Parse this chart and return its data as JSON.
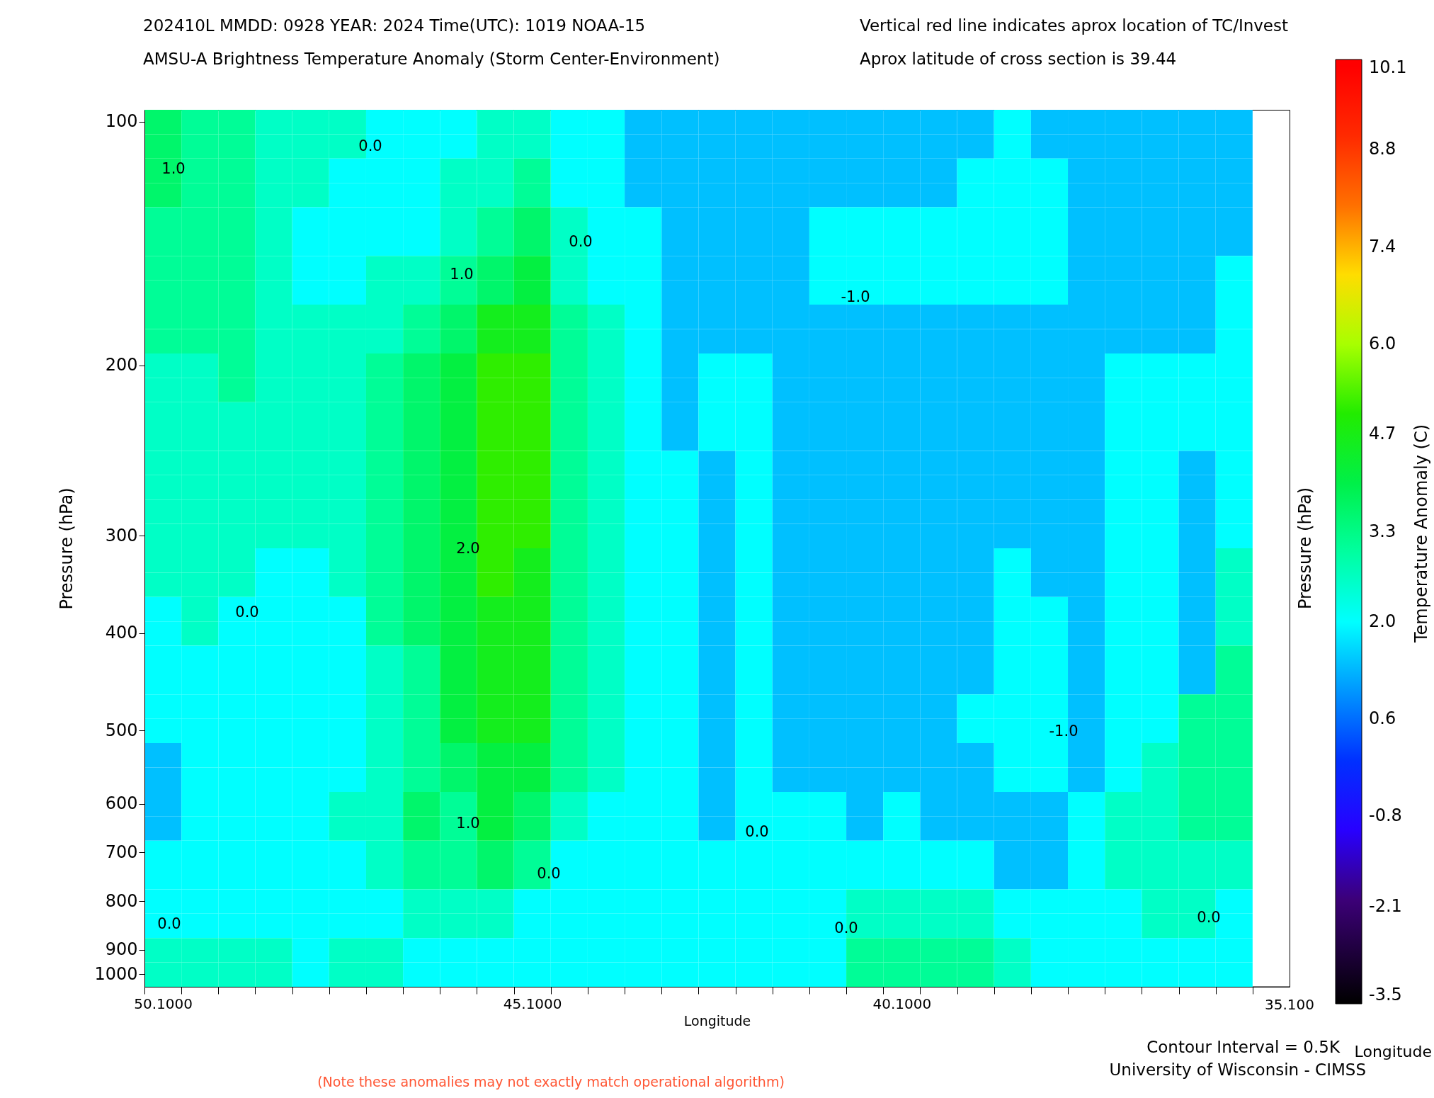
{
  "chart_data": {
    "type": "heatmap",
    "title": "202410L  MMDD: 0928 YEAR: 2024 Time(UTC): 1019 NOAA-15",
    "subtitle": "AMSU-A Brightness Temperature Anomaly (Storm Center-Environment)",
    "xlabel": "Longitude",
    "ylabel": "Pressure (hPa)",
    "y2label": "Pressure (hPa)",
    "clabel": "Temperature Anomaly (C)",
    "annotations": [
      "Vertical red line indicates aprox location of TC/Invest",
      "Aprox latitude of cross section is 39.44",
      "Contour Interval = 0.5K",
      "Longitude",
      "University of Wisconsin - CIMSS",
      "(Note these anomalies may not exactly match operational algorithm)",
      "1.0",
      "0.0",
      "0.0",
      "1.0",
      "2.0",
      "0.0",
      "1.0",
      "0.0",
      "0.0",
      "-1.0",
      "0.0",
      "0.0",
      "-1.0",
      "0.0",
      "35.100"
    ],
    "categories": [
      "50.1000",
      null,
      null,
      null,
      null,
      null,
      null,
      null,
      null,
      null,
      "45.1000",
      null,
      null,
      null,
      null,
      null,
      null,
      null,
      null,
      null,
      "40.1000",
      null,
      null,
      null,
      null,
      null,
      null,
      null,
      null,
      null
    ],
    "y_categories": [
      "100",
      null,
      null,
      null,
      null,
      null,
      null,
      null,
      null,
      null,
      "200",
      null,
      null,
      null,
      null,
      null,
      null,
      "300",
      null,
      null,
      null,
      "400",
      null,
      null,
      null,
      "500",
      null,
      null,
      "600",
      null,
      "700",
      null,
      "800",
      null,
      "900",
      "1000"
    ],
    "cells": [
      [
        3.6,
        3.1,
        3.1,
        2.6,
        2.6,
        2.6,
        2.0,
        2.0,
        2.0,
        2.6,
        2.6,
        2.0,
        2.0,
        1.4,
        1.4,
        1.4,
        1.4,
        1.4,
        1.4,
        1.4,
        1.4,
        1.4,
        1.4,
        2.0,
        1.4,
        1.4,
        1.4,
        1.4,
        1.4,
        1.4
      ],
      [
        3.6,
        3.1,
        3.1,
        2.6,
        2.6,
        2.6,
        2.0,
        2.0,
        2.0,
        2.6,
        2.6,
        2.0,
        2.0,
        1.4,
        1.4,
        1.4,
        1.4,
        1.4,
        1.4,
        1.4,
        1.4,
        1.4,
        1.4,
        2.0,
        1.4,
        1.4,
        1.4,
        1.4,
        1.4,
        1.4
      ],
      [
        3.6,
        3.1,
        3.1,
        2.6,
        2.6,
        2.0,
        2.0,
        2.0,
        2.6,
        2.6,
        3.1,
        2.0,
        2.0,
        1.4,
        1.4,
        1.4,
        1.4,
        1.4,
        1.4,
        1.4,
        1.4,
        1.4,
        2.0,
        2.0,
        2.0,
        1.4,
        1.4,
        1.4,
        1.4,
        1.4
      ],
      [
        3.6,
        3.1,
        3.1,
        2.6,
        2.6,
        2.0,
        2.0,
        2.0,
        2.6,
        2.6,
        3.1,
        2.0,
        2.0,
        1.4,
        1.4,
        1.4,
        1.4,
        1.4,
        1.4,
        1.4,
        1.4,
        1.4,
        2.0,
        2.0,
        2.0,
        1.4,
        1.4,
        1.4,
        1.4,
        1.4
      ],
      [
        3.1,
        3.1,
        3.1,
        2.6,
        2.0,
        2.0,
        2.0,
        2.0,
        2.6,
        3.1,
        3.6,
        2.6,
        2.0,
        2.0,
        1.4,
        1.4,
        1.4,
        1.4,
        2.0,
        2.0,
        2.0,
        2.0,
        2.0,
        2.0,
        2.0,
        1.4,
        1.4,
        1.4,
        1.4,
        1.4
      ],
      [
        3.1,
        3.1,
        3.1,
        2.6,
        2.0,
        2.0,
        2.0,
        2.0,
        2.6,
        3.1,
        3.6,
        2.6,
        2.0,
        2.0,
        1.4,
        1.4,
        1.4,
        1.4,
        2.0,
        2.0,
        2.0,
        2.0,
        2.0,
        2.0,
        2.0,
        1.4,
        1.4,
        1.4,
        1.4,
        1.4
      ],
      [
        3.1,
        3.1,
        3.1,
        2.6,
        2.0,
        2.0,
        2.6,
        2.6,
        3.1,
        3.6,
        4.1,
        2.6,
        2.0,
        2.0,
        1.4,
        1.4,
        1.4,
        1.4,
        2.0,
        2.0,
        2.0,
        2.0,
        2.0,
        2.0,
        2.0,
        1.4,
        1.4,
        1.4,
        1.4,
        2.0
      ],
      [
        3.1,
        3.1,
        3.1,
        2.6,
        2.0,
        2.0,
        2.6,
        2.6,
        3.1,
        3.6,
        4.1,
        2.6,
        2.0,
        2.0,
        1.4,
        1.4,
        1.4,
        1.4,
        2.0,
        2.0,
        2.0,
        2.0,
        2.0,
        2.0,
        2.0,
        1.4,
        1.4,
        1.4,
        1.4,
        2.0
      ],
      [
        3.1,
        3.1,
        3.1,
        2.6,
        2.6,
        2.6,
        2.6,
        3.1,
        3.6,
        4.6,
        4.6,
        3.1,
        2.6,
        2.0,
        1.4,
        1.4,
        1.4,
        1.4,
        1.4,
        1.4,
        1.4,
        1.4,
        1.4,
        1.4,
        1.4,
        1.4,
        1.4,
        1.4,
        1.4,
        2.0
      ],
      [
        3.1,
        3.1,
        3.1,
        2.6,
        2.6,
        2.6,
        2.6,
        3.1,
        3.6,
        4.6,
        4.6,
        3.1,
        2.6,
        2.0,
        1.4,
        1.4,
        1.4,
        1.4,
        1.4,
        1.4,
        1.4,
        1.4,
        1.4,
        1.4,
        1.4,
        1.4,
        1.4,
        1.4,
        1.4,
        2.0
      ],
      [
        2.6,
        2.6,
        3.1,
        2.6,
        2.6,
        2.6,
        3.1,
        3.6,
        4.1,
        5.1,
        5.1,
        3.1,
        2.6,
        2.0,
        1.4,
        2.0,
        2.0,
        1.4,
        1.4,
        1.4,
        1.4,
        1.4,
        1.4,
        1.4,
        1.4,
        1.4,
        2.0,
        2.0,
        2.0,
        2.0
      ],
      [
        2.6,
        2.6,
        3.1,
        2.6,
        2.6,
        2.6,
        3.1,
        3.6,
        4.1,
        5.1,
        5.1,
        3.1,
        2.6,
        2.0,
        1.4,
        2.0,
        2.0,
        1.4,
        1.4,
        1.4,
        1.4,
        1.4,
        1.4,
        1.4,
        1.4,
        1.4,
        2.0,
        2.0,
        2.0,
        2.0
      ],
      [
        2.6,
        2.6,
        2.6,
        2.6,
        2.6,
        2.6,
        3.1,
        3.6,
        4.1,
        5.1,
        5.1,
        3.1,
        2.6,
        2.0,
        1.4,
        2.0,
        2.0,
        1.4,
        1.4,
        1.4,
        1.4,
        1.4,
        1.4,
        1.4,
        1.4,
        1.4,
        2.0,
        2.0,
        2.0,
        2.0
      ],
      [
        2.6,
        2.6,
        2.6,
        2.6,
        2.6,
        2.6,
        3.1,
        3.6,
        4.1,
        5.1,
        5.1,
        3.1,
        2.6,
        2.0,
        1.4,
        2.0,
        2.0,
        1.4,
        1.4,
        1.4,
        1.4,
        1.4,
        1.4,
        1.4,
        1.4,
        1.4,
        2.0,
        2.0,
        2.0,
        2.0
      ],
      [
        2.6,
        2.6,
        2.6,
        2.6,
        2.6,
        2.6,
        3.1,
        3.6,
        4.1,
        5.1,
        5.1,
        3.1,
        2.6,
        2.0,
        2.0,
        1.4,
        2.0,
        1.4,
        1.4,
        1.4,
        1.4,
        1.4,
        1.4,
        1.4,
        1.4,
        1.4,
        2.0,
        2.0,
        1.4,
        2.0
      ],
      [
        2.6,
        2.6,
        2.6,
        2.6,
        2.6,
        2.6,
        3.1,
        3.6,
        4.1,
        5.1,
        5.1,
        3.1,
        2.6,
        2.0,
        2.0,
        1.4,
        2.0,
        1.4,
        1.4,
        1.4,
        1.4,
        1.4,
        1.4,
        1.4,
        1.4,
        1.4,
        2.0,
        2.0,
        1.4,
        2.0
      ],
      [
        2.6,
        2.6,
        2.6,
        2.6,
        2.6,
        2.6,
        3.1,
        3.6,
        4.1,
        5.1,
        5.1,
        3.1,
        2.6,
        2.0,
        2.0,
        1.4,
        2.0,
        1.4,
        1.4,
        1.4,
        1.4,
        1.4,
        1.4,
        1.4,
        1.4,
        1.4,
        2.0,
        2.0,
        1.4,
        2.0
      ],
      [
        2.6,
        2.6,
        2.6,
        2.6,
        2.6,
        2.6,
        3.1,
        3.6,
        4.1,
        5.1,
        5.1,
        3.1,
        2.6,
        2.0,
        2.0,
        1.4,
        2.0,
        1.4,
        1.4,
        1.4,
        1.4,
        1.4,
        1.4,
        1.4,
        1.4,
        1.4,
        2.0,
        2.0,
        1.4,
        2.0
      ],
      [
        2.6,
        2.6,
        2.6,
        2.0,
        2.0,
        2.6,
        3.1,
        3.6,
        4.1,
        5.1,
        4.6,
        3.1,
        2.6,
        2.0,
        2.0,
        1.4,
        2.0,
        1.4,
        1.4,
        1.4,
        1.4,
        1.4,
        1.4,
        2.0,
        1.4,
        1.4,
        2.0,
        2.0,
        1.4,
        2.6
      ],
      [
        2.6,
        2.6,
        2.6,
        2.0,
        2.0,
        2.6,
        3.1,
        3.6,
        4.1,
        5.1,
        4.6,
        3.1,
        2.6,
        2.0,
        2.0,
        1.4,
        2.0,
        1.4,
        1.4,
        1.4,
        1.4,
        1.4,
        1.4,
        2.0,
        1.4,
        1.4,
        2.0,
        2.0,
        1.4,
        2.6
      ],
      [
        2.0,
        2.6,
        2.0,
        2.0,
        2.0,
        2.0,
        3.1,
        3.6,
        4.1,
        4.6,
        4.6,
        3.1,
        2.6,
        2.0,
        2.0,
        1.4,
        2.0,
        1.4,
        1.4,
        1.4,
        1.4,
        1.4,
        1.4,
        2.0,
        2.0,
        1.4,
        2.0,
        2.0,
        1.4,
        2.6
      ],
      [
        2.0,
        2.6,
        2.0,
        2.0,
        2.0,
        2.0,
        3.1,
        3.6,
        4.1,
        4.6,
        4.6,
        3.1,
        2.6,
        2.0,
        2.0,
        1.4,
        2.0,
        1.4,
        1.4,
        1.4,
        1.4,
        1.4,
        1.4,
        2.0,
        2.0,
        1.4,
        2.0,
        2.0,
        1.4,
        2.6
      ],
      [
        2.0,
        2.0,
        2.0,
        2.0,
        2.0,
        2.0,
        2.6,
        3.1,
        4.1,
        4.6,
        4.6,
        3.1,
        2.6,
        2.0,
        2.0,
        1.4,
        2.0,
        1.4,
        1.4,
        1.4,
        1.4,
        1.4,
        1.4,
        2.0,
        2.0,
        1.4,
        2.0,
        2.0,
        1.4,
        3.1
      ],
      [
        2.0,
        2.0,
        2.0,
        2.0,
        2.0,
        2.0,
        2.6,
        3.1,
        4.1,
        4.6,
        4.6,
        3.1,
        2.6,
        2.0,
        2.0,
        1.4,
        2.0,
        1.4,
        1.4,
        1.4,
        1.4,
        1.4,
        1.4,
        2.0,
        2.0,
        1.4,
        2.0,
        2.0,
        1.4,
        3.1
      ],
      [
        2.0,
        2.0,
        2.0,
        2.0,
        2.0,
        2.0,
        2.6,
        3.1,
        4.1,
        4.6,
        4.6,
        3.1,
        2.6,
        2.0,
        2.0,
        1.4,
        2.0,
        1.4,
        1.4,
        1.4,
        1.4,
        1.4,
        2.0,
        2.0,
        2.0,
        1.4,
        2.0,
        2.0,
        3.1,
        3.1
      ],
      [
        2.0,
        2.0,
        2.0,
        2.0,
        2.0,
        2.0,
        2.6,
        3.1,
        4.1,
        4.6,
        4.6,
        3.1,
        2.6,
        2.0,
        2.0,
        1.4,
        2.0,
        1.4,
        1.4,
        1.4,
        1.4,
        1.4,
        2.0,
        2.0,
        2.0,
        1.4,
        2.0,
        2.0,
        3.1,
        3.1
      ],
      [
        1.4,
        2.0,
        2.0,
        2.0,
        2.0,
        2.0,
        2.6,
        3.1,
        3.6,
        4.1,
        4.1,
        3.1,
        2.6,
        2.0,
        2.0,
        1.4,
        2.0,
        1.4,
        1.4,
        1.4,
        1.4,
        1.4,
        1.4,
        2.0,
        2.0,
        1.4,
        2.0,
        2.6,
        3.1,
        3.1
      ],
      [
        1.4,
        2.0,
        2.0,
        2.0,
        2.0,
        2.0,
        2.6,
        3.1,
        3.6,
        4.1,
        4.1,
        3.1,
        2.6,
        2.0,
        2.0,
        1.4,
        2.0,
        1.4,
        1.4,
        1.4,
        1.4,
        1.4,
        1.4,
        2.0,
        2.0,
        1.4,
        2.0,
        2.6,
        3.1,
        3.1
      ],
      [
        1.4,
        2.0,
        2.0,
        2.0,
        2.0,
        2.6,
        2.6,
        3.6,
        3.1,
        4.1,
        3.6,
        2.6,
        2.0,
        2.0,
        2.0,
        1.4,
        2.0,
        2.0,
        2.0,
        1.4,
        2.0,
        1.4,
        1.4,
        1.4,
        1.4,
        2.0,
        2.6,
        2.6,
        3.1,
        3.1
      ],
      [
        1.4,
        2.0,
        2.0,
        2.0,
        2.0,
        2.6,
        2.6,
        3.6,
        3.1,
        4.1,
        3.6,
        2.6,
        2.0,
        2.0,
        2.0,
        1.4,
        2.0,
        2.0,
        2.0,
        1.4,
        2.0,
        1.4,
        1.4,
        1.4,
        1.4,
        2.0,
        2.6,
        2.6,
        3.1,
        3.1
      ],
      [
        2.0,
        2.0,
        2.0,
        2.0,
        2.0,
        2.0,
        2.6,
        3.1,
        3.1,
        3.6,
        3.1,
        2.0,
        2.0,
        2.0,
        2.0,
        2.0,
        2.0,
        2.0,
        2.0,
        2.0,
        2.0,
        2.0,
        2.0,
        1.4,
        1.4,
        2.0,
        2.6,
        2.6,
        2.6,
        2.6
      ],
      [
        2.0,
        2.0,
        2.0,
        2.0,
        2.0,
        2.0,
        2.6,
        3.1,
        3.1,
        3.6,
        3.1,
        2.0,
        2.0,
        2.0,
        2.0,
        2.0,
        2.0,
        2.0,
        2.0,
        2.0,
        2.0,
        2.0,
        2.0,
        1.4,
        1.4,
        2.0,
        2.6,
        2.6,
        2.6,
        2.6
      ],
      [
        2.0,
        2.0,
        2.0,
        2.0,
        2.0,
        2.0,
        2.0,
        2.6,
        2.6,
        2.6,
        2.0,
        2.0,
        2.0,
        2.0,
        2.0,
        2.0,
        2.0,
        2.0,
        2.0,
        2.6,
        2.6,
        2.6,
        2.6,
        2.0,
        2.0,
        2.0,
        2.0,
        2.6,
        2.6,
        2.0
      ],
      [
        2.0,
        2.0,
        2.0,
        2.0,
        2.0,
        2.0,
        2.0,
        2.6,
        2.6,
        2.6,
        2.0,
        2.0,
        2.0,
        2.0,
        2.0,
        2.0,
        2.0,
        2.0,
        2.0,
        2.6,
        2.6,
        2.6,
        2.6,
        2.0,
        2.0,
        2.0,
        2.0,
        2.6,
        2.6,
        2.0
      ],
      [
        2.6,
        2.6,
        2.6,
        2.6,
        2.0,
        2.6,
        2.6,
        2.0,
        2.0,
        2.0,
        2.0,
        2.0,
        2.0,
        2.0,
        2.0,
        2.0,
        2.0,
        2.0,
        2.0,
        3.1,
        3.1,
        3.1,
        3.1,
        2.6,
        2.0,
        2.0,
        2.0,
        2.0,
        2.0,
        2.0
      ],
      [
        2.6,
        2.6,
        2.6,
        2.6,
        2.0,
        2.6,
        2.6,
        2.0,
        2.0,
        2.0,
        2.0,
        2.0,
        2.0,
        2.0,
        2.0,
        2.0,
        2.0,
        2.0,
        2.0,
        3.1,
        3.1,
        3.1,
        3.1,
        2.6,
        2.0,
        2.0,
        2.0,
        2.0,
        2.0,
        2.0
      ]
    ],
    "clim": [
      -3.5,
      10.1
    ],
    "cticks": [
      -3.5,
      -2.1,
      -0.8,
      0.6,
      {
        "value": 2,
        "label": "2.0"
      },
      3.3,
      4.7,
      {
        "value": 6,
        "label": "6.0"
      },
      7.4,
      8.8,
      10.1
    ]
  }
}
